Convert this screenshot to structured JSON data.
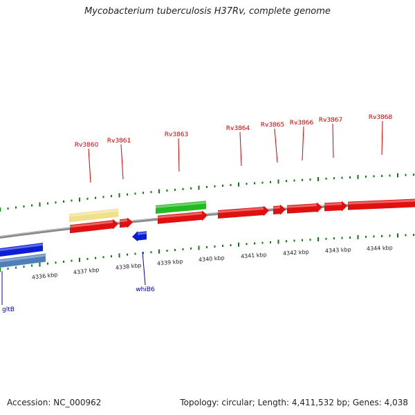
{
  "title": "Mycobacterium tuberculosis H37Rv, complete genome",
  "colors": {
    "forward_gene_label": "#cc0000",
    "reverse_gene_label": "#0000aa",
    "cds_red": "#e01010",
    "cds_yellow": "#f0e08c",
    "cds_green": "#22bb22",
    "cds_blue": "#0a1ed8",
    "cds_steelblue": "#4f7fb8",
    "tick_green": "#117711",
    "backbone": "#8a8a8a"
  },
  "forward_labels": [
    "Rv3860",
    "Rv3861",
    "Rv3863",
    "Rv3864",
    "Rv3865",
    "Rv3866",
    "Rv3867",
    "Rv3868"
  ],
  "reverse_labels": [
    "gltB",
    "whiB6"
  ],
  "scale_labels": [
    "4336 kbp",
    "4337 kbp",
    "4338 kbp",
    "4339 kbp",
    "4340 kbp",
    "4341 kbp",
    "4342 kbp",
    "4343 kbp",
    "4344 kbp"
  ],
  "footer": {
    "accession": "Accession: NC_000962",
    "stats": "Topology: circular; Length: 4,411,532 bp; Genes: 4,038"
  }
}
